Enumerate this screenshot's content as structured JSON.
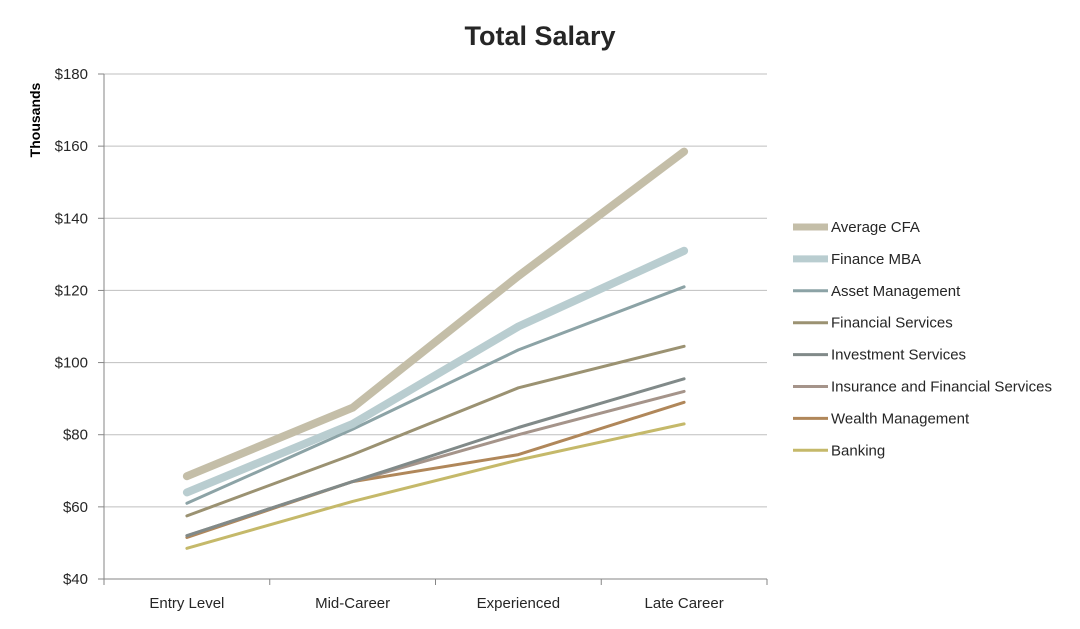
{
  "chart_data": {
    "type": "line",
    "title": "Total Salary",
    "xlabel": "",
    "ylabel": "Thousands",
    "categories": [
      "Entry Level",
      "Mid-Career",
      "Experienced",
      "Late Career"
    ],
    "ylim": [
      40,
      180
    ],
    "yticks": [
      40,
      60,
      80,
      100,
      120,
      140,
      160,
      180
    ],
    "ytick_labels": [
      "$40",
      "$60",
      "$80",
      "$100",
      "$120",
      "$140",
      "$160",
      "$180"
    ],
    "grid": true,
    "legend_position": "right",
    "series": [
      {
        "name": "Average CFA",
        "values": [
          68.5,
          87.5,
          124,
          158.5
        ],
        "color": "#c4bea8",
        "thick": true
      },
      {
        "name": "Finance MBA",
        "values": [
          64,
          83,
          110,
          131
        ],
        "color": "#b9cdd0",
        "thick": true
      },
      {
        "name": "Asset Management",
        "values": [
          61,
          81.5,
          103.5,
          121
        ],
        "color": "#8ca3a6",
        "thick": false
      },
      {
        "name": "Financial Services",
        "values": [
          57.5,
          74.5,
          93,
          104.5
        ],
        "color": "#9b9272",
        "thick": false
      },
      {
        "name": "Investment Services",
        "values": [
          52,
          67,
          82,
          95.5
        ],
        "color": "#818a89",
        "thick": false
      },
      {
        "name": "Insurance and Financial Services",
        "values": [
          52,
          67,
          80,
          92
        ],
        "color": "#a5948a",
        "thick": false
      },
      {
        "name": "Wealth Management",
        "values": [
          51.5,
          67,
          74.5,
          89
        ],
        "color": "#b0875a",
        "thick": false
      },
      {
        "name": "Banking",
        "values": [
          48.5,
          61.5,
          73,
          83
        ],
        "color": "#c5b96a",
        "thick": false
      }
    ]
  }
}
